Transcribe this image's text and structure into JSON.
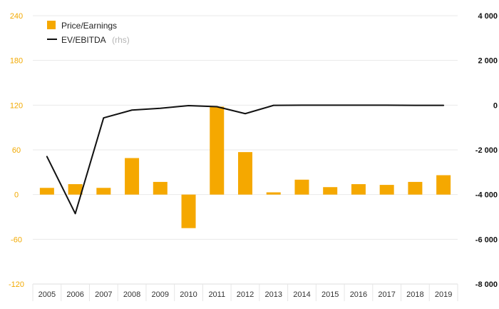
{
  "chart_data": {
    "type": "bar",
    "categories": [
      "2005",
      "2006",
      "2007",
      "2008",
      "2009",
      "2010",
      "2011",
      "2012",
      "2013",
      "2014",
      "2015",
      "2016",
      "2017",
      "2018",
      "2019"
    ],
    "series": [
      {
        "name": "Price/Earnings",
        "type": "bar",
        "axis": "left",
        "color": "#f5a800",
        "values": [
          9,
          14,
          9,
          49,
          17,
          -45,
          118,
          57,
          3,
          20,
          10,
          14,
          13,
          17,
          26
        ]
      },
      {
        "name": "EV/EBITDA",
        "name_suffix": "(rhs)",
        "type": "line",
        "axis": "right",
        "color": "#111111",
        "values": [
          -2300,
          -4850,
          -570,
          -220,
          -140,
          -20,
          -70,
          -380,
          -10,
          0,
          0,
          0,
          0,
          -10,
          -10
        ]
      }
    ],
    "left_axis": {
      "ylim": [
        -120,
        240
      ],
      "ticks": [
        -120,
        -60,
        0,
        60,
        120,
        180,
        240
      ],
      "tick_labels": [
        "-120",
        "-60",
        "0",
        "60",
        "120",
        "180",
        "240"
      ]
    },
    "right_axis": {
      "ylim": [
        -8000,
        4000
      ],
      "ticks": [
        -8000,
        -6000,
        -4000,
        -2000,
        0,
        2000,
        4000
      ],
      "tick_labels": [
        "-8 000",
        "-6 000",
        "-4 000",
        "-2 000",
        "0",
        "2 000",
        "4 000"
      ]
    },
    "grid": true,
    "legend": "top-left"
  },
  "colors": {
    "bar": "#f5a800",
    "line": "#111111",
    "left_axis_text": "#f2a900",
    "grid": "#e9e9e9"
  }
}
